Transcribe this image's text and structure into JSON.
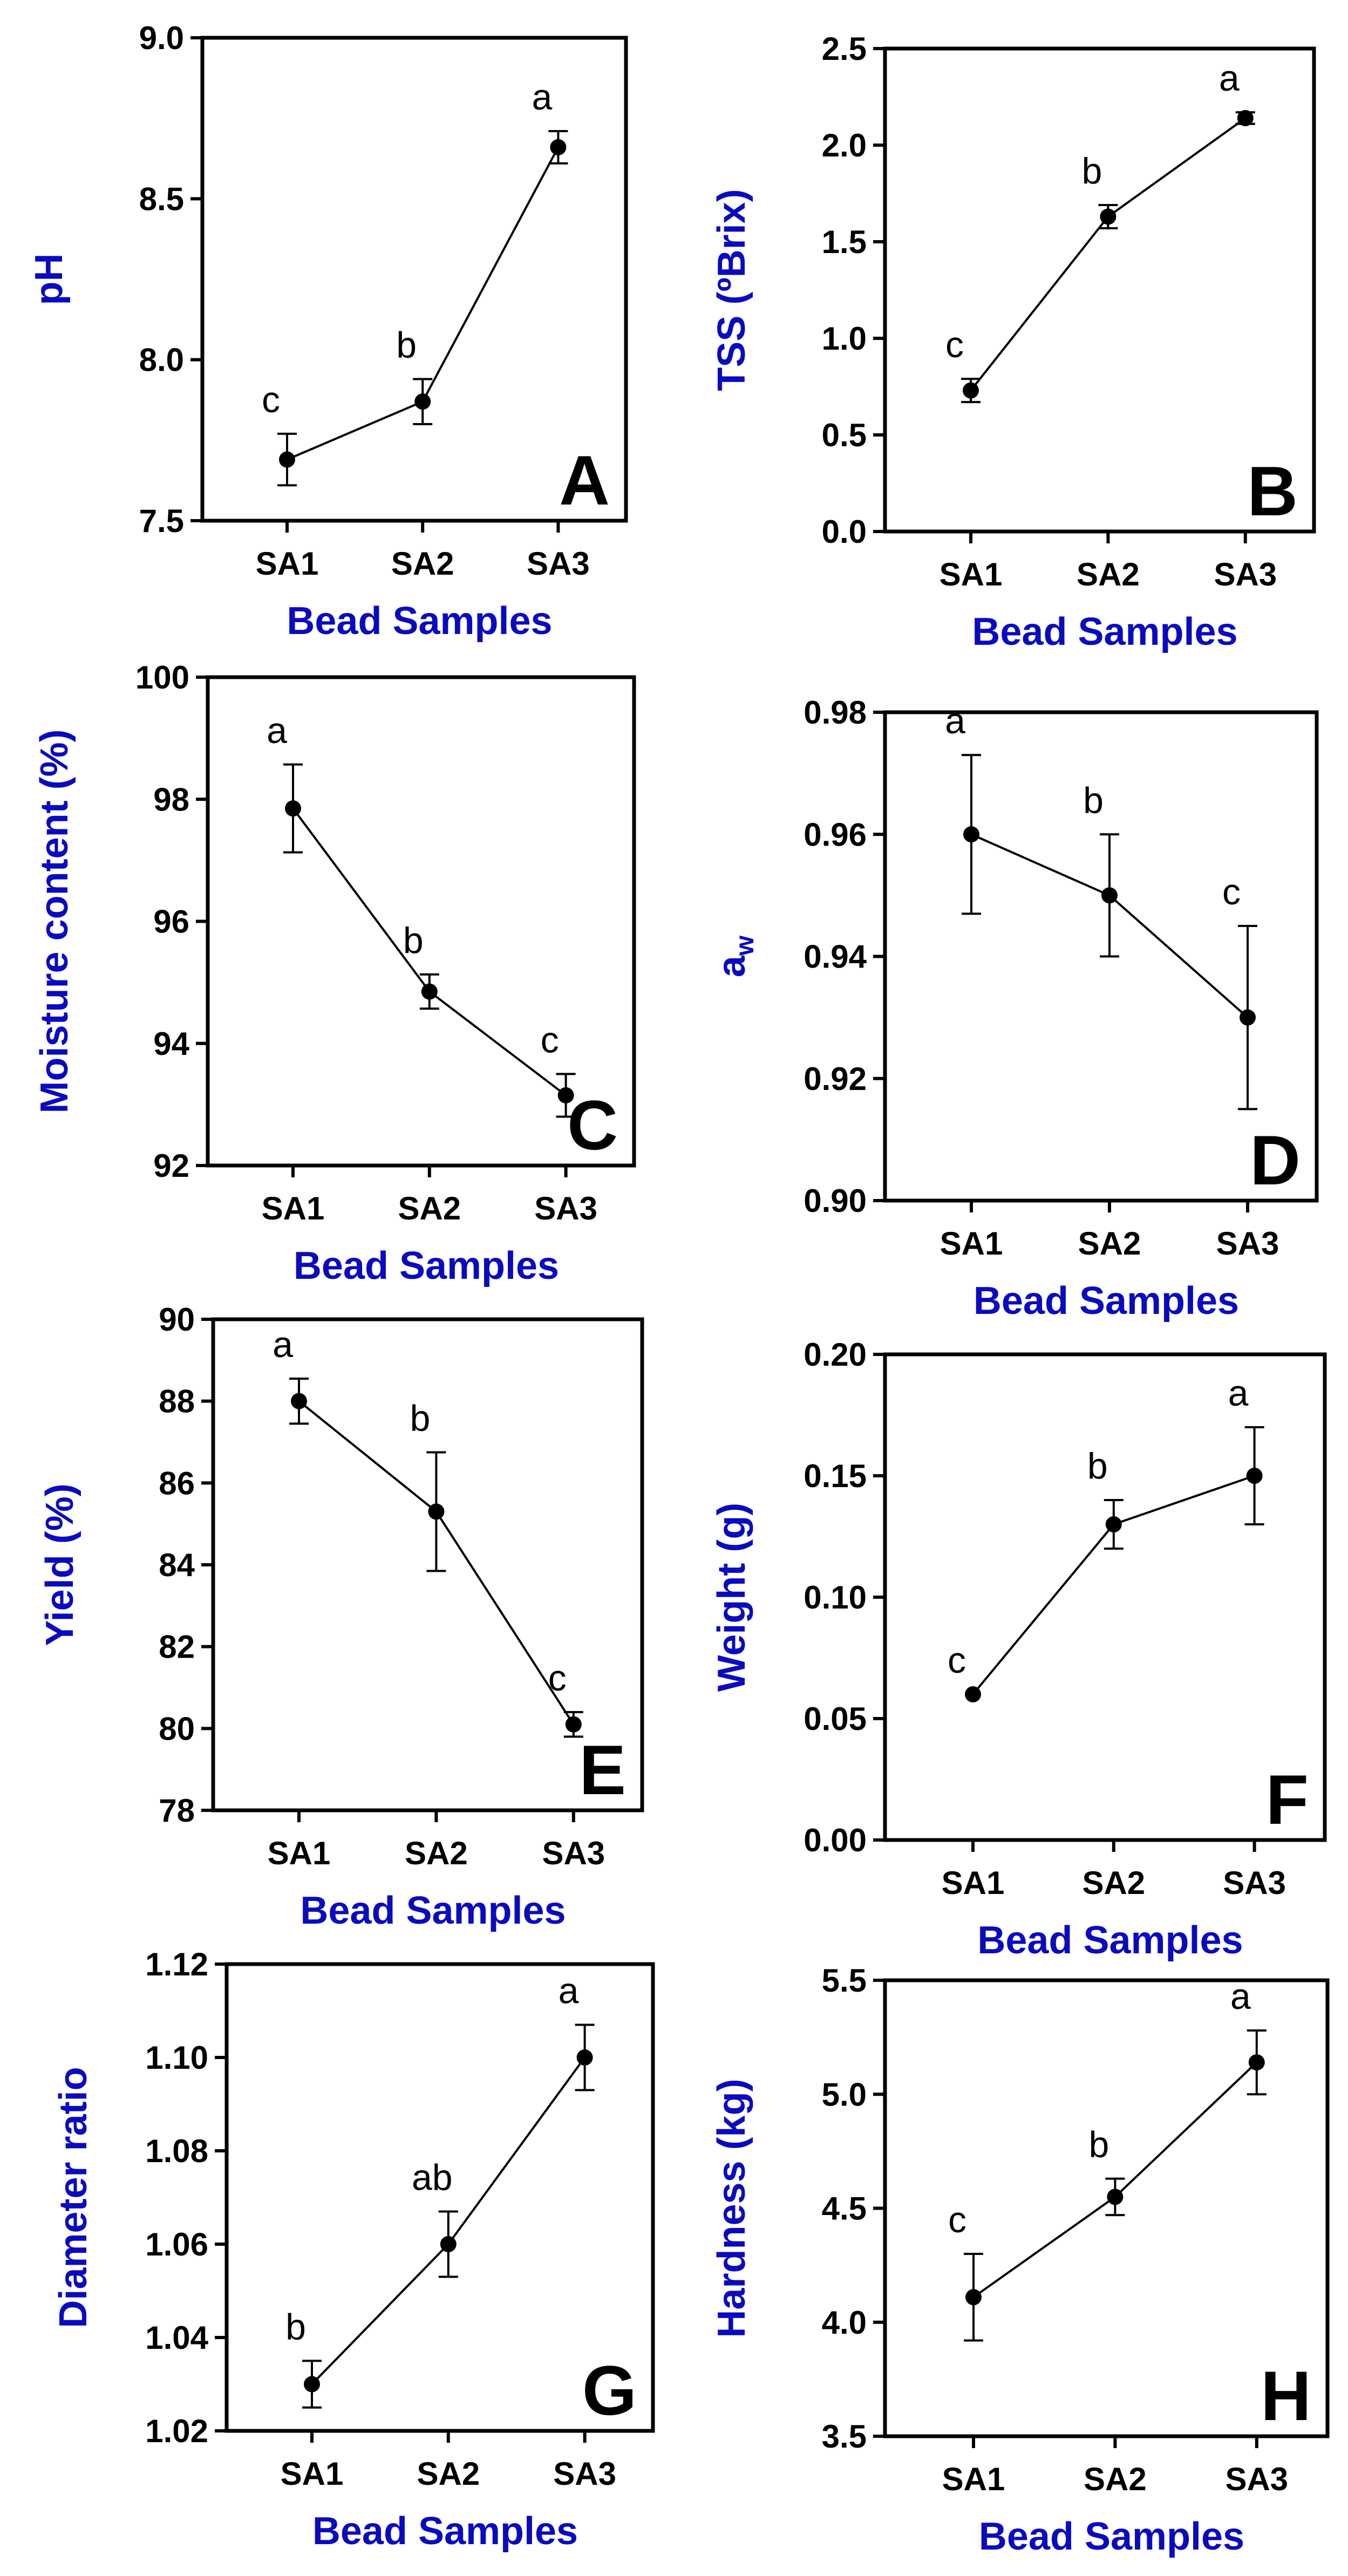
{
  "chart_data": [
    {
      "type": "line",
      "panel": "A",
      "categories": [
        "SA1",
        "SA2",
        "SA3"
      ],
      "values": [
        7.69,
        7.87,
        8.66
      ],
      "errors": [
        0.08,
        0.07,
        0.05
      ],
      "labels": [
        "c",
        "b",
        "a"
      ],
      "ylabel": "pH",
      "xlabel": "Bead Samples",
      "ylim": [
        7.5,
        9.0
      ],
      "yticks": [
        "7.5",
        "8.0",
        "8.5",
        "9.0"
      ]
    },
    {
      "type": "line",
      "panel": "B",
      "categories": [
        "SA1",
        "SA2",
        "SA3"
      ],
      "values": [
        0.73,
        1.63,
        2.14
      ],
      "errors": [
        0.06,
        0.06,
        0.03
      ],
      "labels": [
        "c",
        "b",
        "a"
      ],
      "ylabel": "TSS (ºBrix)",
      "xlabel": "Bead Samples",
      "ylim": [
        0.0,
        2.5
      ],
      "yticks": [
        "0.0",
        "0.5",
        "1.0",
        "1.5",
        "2.0",
        "2.5"
      ]
    },
    {
      "type": "line",
      "panel": "C",
      "categories": [
        "SA1",
        "SA2",
        "SA3"
      ],
      "values": [
        97.85,
        94.85,
        93.15
      ],
      "errors": [
        0.72,
        0.28,
        0.35
      ],
      "labels": [
        "a",
        "b",
        "c"
      ],
      "ylabel": "Moisture content (%)",
      "xlabel": "Bead Samples",
      "ylim": [
        92,
        100
      ],
      "yticks": [
        "92",
        "94",
        "96",
        "98",
        "100"
      ]
    },
    {
      "type": "line",
      "panel": "D",
      "categories": [
        "SA1",
        "SA2",
        "SA3"
      ],
      "values": [
        0.96,
        0.95,
        0.93
      ],
      "errors": [
        0.013,
        0.01,
        0.015
      ],
      "labels": [
        "a",
        "b",
        "c"
      ],
      "ylabel": "aw",
      "xlabel": "Bead Samples",
      "ylim": [
        0.9,
        0.98
      ],
      "yticks": [
        "0.90",
        "0.92",
        "0.94",
        "0.96",
        "0.98"
      ]
    },
    {
      "type": "line",
      "panel": "E",
      "categories": [
        "SA1",
        "SA2",
        "SA3"
      ],
      "values": [
        88.0,
        85.3,
        80.1
      ],
      "errors": [
        0.55,
        1.45,
        0.3
      ],
      "labels": [
        "a",
        "b",
        "c"
      ],
      "ylabel": "Yield (%)",
      "xlabel": "Bead Samples",
      "ylim": [
        78,
        90
      ],
      "yticks": [
        "78",
        "80",
        "82",
        "84",
        "86",
        "88",
        "90"
      ]
    },
    {
      "type": "line",
      "panel": "F",
      "categories": [
        "SA1",
        "SA2",
        "SA3"
      ],
      "values": [
        0.06,
        0.13,
        0.15
      ],
      "errors": [
        0.0,
        0.01,
        0.02
      ],
      "labels": [
        "c",
        "b",
        "a"
      ],
      "ylabel": "Weight (g)",
      "xlabel": "Bead Samples",
      "ylim": [
        0.0,
        0.2
      ],
      "yticks": [
        "0.00",
        "0.05",
        "0.10",
        "0.15",
        "0.20"
      ]
    },
    {
      "type": "line",
      "panel": "G",
      "categories": [
        "SA1",
        "SA2",
        "SA3"
      ],
      "values": [
        1.03,
        1.06,
        1.1
      ],
      "errors": [
        0.005,
        0.007,
        0.007
      ],
      "labels": [
        "b",
        "ab",
        "a"
      ],
      "ylabel": "Diameter ratio",
      "xlabel": "Bead Samples",
      "ylim": [
        1.02,
        1.12
      ],
      "yticks": [
        "1.02",
        "1.04",
        "1.06",
        "1.08",
        "1.10",
        "1.12"
      ]
    },
    {
      "type": "line",
      "panel": "H",
      "categories": [
        "SA1",
        "SA2",
        "SA3"
      ],
      "values": [
        4.11,
        4.55,
        5.14
      ],
      "errors": [
        0.19,
        0.08,
        0.14
      ],
      "labels": [
        "c",
        "b",
        "a"
      ],
      "ylabel": "Hardness (kg)",
      "xlabel": "Bead Samples",
      "ylim": [
        3.5,
        5.5
      ],
      "yticks": [
        "3.5",
        "4.0",
        "4.5",
        "5.0",
        "5.5"
      ]
    }
  ]
}
